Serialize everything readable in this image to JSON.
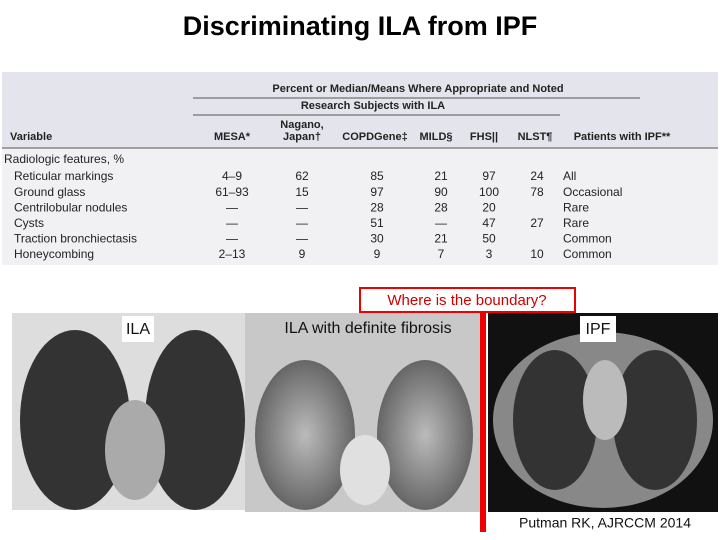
{
  "header": {
    "title": "Discriminating ILA from IPF"
  },
  "table": {
    "group_header": "Percent or Median/Means Where Appropriate and Noted",
    "subgroup_header": "Research Subjects with ILA",
    "columns": [
      "Variable",
      "MESA*",
      [
        "Nagano,",
        "Japan†"
      ],
      "COPDGene‡",
      "MILD§",
      "FHS||",
      "NLST¶",
      "Patients with IPF**"
    ],
    "section": "Radiologic features, %",
    "rows": [
      [
        "Reticular markings",
        "4–9",
        "62",
        "85",
        "21",
        "97",
        "24",
        "All"
      ],
      [
        "Ground glass",
        "61–93",
        "15",
        "97",
        "90",
        "100",
        "78",
        "Occasional"
      ],
      [
        "Centrilobular nodules",
        "—",
        "—",
        "28",
        "28",
        "20",
        null,
        "Rare"
      ],
      [
        "Cysts",
        "—",
        "—",
        "51",
        "—",
        "47",
        "27",
        "Rare"
      ],
      [
        "Traction bronchiectasis",
        "—",
        "—",
        "30",
        "21",
        "50",
        null,
        "Common"
      ],
      [
        "Honeycombing",
        "2–13",
        "9",
        "9",
        "7",
        "3",
        "10",
        "Common"
      ]
    ]
  },
  "images": {
    "labels": [
      "ILA",
      "ILA with definite fibrosis",
      "IPF"
    ]
  },
  "callout": "Where is the boundary?",
  "citation": "Putman RK, AJRCCM 2014"
}
